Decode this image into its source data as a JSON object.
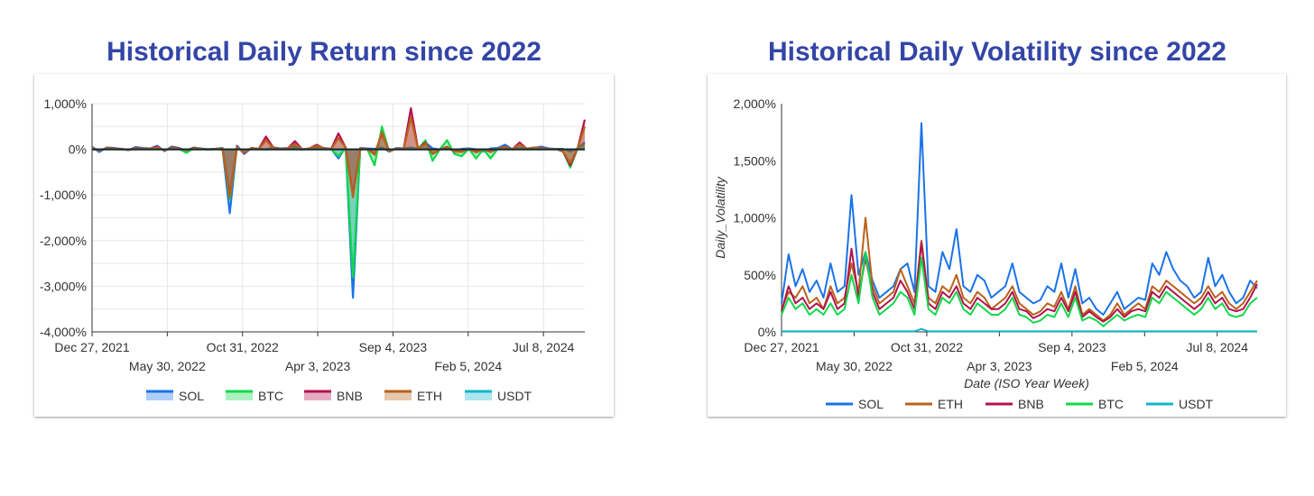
{
  "chart_data": [
    {
      "type": "area",
      "title": "Historical Daily Return since 2022",
      "xlabel": "",
      "ylabel": "",
      "ylim": [
        -4000,
        1000
      ],
      "y_ticks": [
        "1,000%",
        "0%",
        "-1,000%",
        "-2,000%",
        "-3,000%",
        "-4,000%"
      ],
      "x_tick_labels": [
        "Dec 27, 2021",
        "May 30, 2022",
        "Oct 31, 2022",
        "Apr 3, 2023",
        "Sep 4, 2023",
        "Feb 5, 2024",
        "Jul 8, 2024"
      ],
      "grid": true,
      "legend_position": "bottom",
      "legend": [
        {
          "name": "SOL",
          "color": "#1a73e8"
        },
        {
          "name": "BTC",
          "color": "#12d84a"
        },
        {
          "name": "BNB",
          "color": "#b3124f"
        },
        {
          "name": "ETH",
          "color": "#b8621b"
        },
        {
          "name": "USDT",
          "color": "#12b5cb"
        }
      ],
      "series": [
        {
          "name": "SOL",
          "color": "#1a73e8",
          "values": [
            60,
            -60,
            40,
            30,
            10,
            -20,
            50,
            30,
            20,
            80,
            -40,
            60,
            30,
            -30,
            40,
            20,
            0,
            10,
            30,
            -1400,
            80,
            -100,
            30,
            10,
            0,
            40,
            20,
            30,
            60,
            -10,
            20,
            40,
            30,
            10,
            -200,
            50,
            -3250,
            30,
            20,
            10,
            40,
            -50,
            30,
            20,
            40,
            10,
            150,
            20,
            0,
            30,
            -40,
            10,
            20,
            0,
            -50,
            20,
            30,
            100,
            0,
            40,
            20,
            30,
            60,
            20,
            10,
            10,
            -50,
            20,
            150
          ]
        },
        {
          "name": "BTC",
          "color": "#12d84a",
          "values": [
            30,
            -20,
            20,
            10,
            0,
            -10,
            20,
            10,
            10,
            30,
            -20,
            20,
            10,
            -80,
            20,
            10,
            0,
            10,
            20,
            -1100,
            40,
            -60,
            20,
            10,
            0,
            20,
            10,
            20,
            30,
            0,
            10,
            20,
            20,
            0,
            -150,
            30,
            -2800,
            20,
            0,
            -350,
            500,
            -50,
            20,
            10,
            20,
            10,
            200,
            -250,
            0,
            200,
            -100,
            -150,
            10,
            -200,
            0,
            -200,
            10,
            50,
            0,
            20,
            10,
            40,
            30,
            10,
            10,
            -50,
            -400,
            20,
            100
          ]
        },
        {
          "name": "BNB",
          "color": "#b3124f",
          "values": [
            40,
            -30,
            30,
            20,
            10,
            -10,
            30,
            20,
            10,
            60,
            -30,
            40,
            20,
            -20,
            30,
            10,
            0,
            10,
            20,
            -1000,
            60,
            -80,
            30,
            10,
            280,
            40,
            10,
            20,
            180,
            0,
            20,
            100,
            20,
            10,
            350,
            40,
            -1000,
            20,
            10,
            -100,
            350,
            -50,
            20,
            10,
            900,
            10,
            150,
            -100,
            0,
            50,
            -50,
            -50,
            10,
            -50,
            0,
            -50,
            10,
            60,
            0,
            150,
            10,
            40,
            30,
            10,
            10,
            -50,
            -350,
            20,
            650
          ]
        },
        {
          "name": "ETH",
          "color": "#b8621b",
          "values": [
            35,
            -25,
            25,
            15,
            5,
            -15,
            25,
            15,
            15,
            45,
            -25,
            30,
            15,
            -25,
            25,
            15,
            0,
            10,
            15,
            -1050,
            50,
            -70,
            25,
            10,
            200,
            30,
            10,
            20,
            120,
            0,
            15,
            80,
            20,
            5,
            250,
            35,
            -1050,
            20,
            5,
            -120,
            380,
            -45,
            20,
            10,
            700,
            10,
            130,
            -90,
            0,
            60,
            -45,
            -60,
            10,
            -70,
            0,
            -60,
            10,
            55,
            0,
            110,
            10,
            35,
            25,
            10,
            10,
            -45,
            -300,
            20,
            500
          ]
        },
        {
          "name": "USDT",
          "color": "#12b5cb",
          "values": [
            0,
            0,
            0,
            0,
            0,
            0,
            0,
            0,
            0,
            0,
            0,
            0,
            0,
            0,
            0,
            0,
            0,
            0,
            0,
            0,
            0,
            0,
            0,
            0,
            0,
            0,
            0,
            0,
            0,
            0,
            0,
            0,
            0,
            0,
            0,
            0,
            0,
            0,
            0,
            0,
            0,
            0,
            0,
            0,
            0,
            0,
            0,
            0,
            0,
            0,
            0,
            0,
            0,
            0,
            0,
            0,
            0,
            0,
            0,
            0,
            0,
            0,
            0,
            0,
            0,
            0,
            0,
            0,
            0
          ]
        }
      ]
    },
    {
      "type": "line",
      "title": "Historical Daily Volatility since 2022",
      "xlabel": "Date (ISO Year Week)",
      "ylabel": "Daily_Volatility",
      "ylim": [
        0,
        2000
      ],
      "y_ticks": [
        "2,000%",
        "1,500%",
        "1,000%",
        "500%",
        "0%"
      ],
      "x_tick_labels": [
        "Dec 27, 2021",
        "May 30, 2022",
        "Oct 31, 2022",
        "Apr 3, 2023",
        "Sep 4, 2023",
        "Feb 5, 2024",
        "Jul 8, 2024"
      ],
      "grid": false,
      "legend_position": "bottom",
      "legend": [
        {
          "name": "SOL",
          "color": "#1a73e8"
        },
        {
          "name": "ETH",
          "color": "#b8621b"
        },
        {
          "name": "BNB",
          "color": "#b3124f"
        },
        {
          "name": "BTC",
          "color": "#12d84a"
        },
        {
          "name": "USDT",
          "color": "#12b5cb"
        }
      ],
      "series": [
        {
          "name": "SOL",
          "color": "#1a73e8",
          "values": [
            250,
            680,
            400,
            550,
            350,
            450,
            300,
            600,
            350,
            400,
            1200,
            500,
            700,
            450,
            300,
            350,
            400,
            550,
            600,
            350,
            1830,
            400,
            350,
            700,
            550,
            900,
            400,
            350,
            500,
            450,
            300,
            350,
            400,
            600,
            350,
            300,
            250,
            280,
            400,
            350,
            600,
            300,
            550,
            250,
            300,
            200,
            150,
            250,
            350,
            200,
            250,
            300,
            280,
            600,
            500,
            700,
            550,
            450,
            400,
            300,
            350,
            650,
            400,
            500,
            350,
            250,
            300,
            450,
            380
          ]
        },
        {
          "name": "ETH",
          "color": "#b8621b",
          "values": [
            200,
            350,
            300,
            400,
            250,
            300,
            200,
            400,
            250,
            300,
            600,
            350,
            1000,
            400,
            250,
            300,
            350,
            550,
            400,
            250,
            800,
            300,
            250,
            400,
            350,
            500,
            300,
            250,
            350,
            300,
            200,
            250,
            300,
            400,
            250,
            200,
            150,
            180,
            250,
            220,
            350,
            200,
            400,
            150,
            200,
            150,
            100,
            150,
            250,
            150,
            200,
            250,
            200,
            400,
            350,
            450,
            400,
            350,
            300,
            250,
            300,
            400,
            300,
            350,
            250,
            200,
            250,
            350,
            450
          ]
        },
        {
          "name": "BNB",
          "color": "#b3124f",
          "values": [
            180,
            400,
            250,
            300,
            200,
            250,
            200,
            350,
            200,
            250,
            730,
            300,
            650,
            350,
            200,
            250,
            300,
            450,
            350,
            200,
            780,
            250,
            200,
            350,
            300,
            400,
            250,
            200,
            300,
            250,
            200,
            200,
            250,
            350,
            200,
            180,
            120,
            150,
            200,
            180,
            300,
            180,
            350,
            130,
            180,
            130,
            90,
            130,
            200,
            130,
            180,
            200,
            180,
            350,
            300,
            400,
            350,
            300,
            250,
            200,
            250,
            350,
            250,
            300,
            200,
            180,
            200,
            300,
            420
          ]
        },
        {
          "name": "BTC",
          "color": "#12d84a",
          "values": [
            150,
            300,
            200,
            250,
            150,
            200,
            150,
            250,
            150,
            200,
            500,
            250,
            700,
            300,
            150,
            200,
            250,
            350,
            300,
            150,
            650,
            200,
            150,
            300,
            250,
            350,
            200,
            150,
            250,
            200,
            150,
            150,
            200,
            300,
            150,
            130,
            80,
            100,
            150,
            130,
            250,
            130,
            300,
            100,
            130,
            100,
            50,
            100,
            150,
            100,
            130,
            150,
            130,
            300,
            250,
            350,
            300,
            250,
            200,
            150,
            200,
            300,
            200,
            250,
            150,
            130,
            150,
            250,
            300
          ]
        },
        {
          "name": "USDT",
          "color": "#12b5cb",
          "values": [
            5,
            5,
            5,
            5,
            5,
            5,
            5,
            5,
            5,
            5,
            5,
            5,
            5,
            5,
            5,
            5,
            5,
            5,
            5,
            5,
            25,
            5,
            5,
            5,
            5,
            5,
            5,
            5,
            5,
            5,
            5,
            5,
            5,
            5,
            5,
            5,
            5,
            5,
            5,
            5,
            5,
            5,
            5,
            5,
            5,
            5,
            5,
            5,
            5,
            5,
            5,
            5,
            5,
            5,
            5,
            5,
            5,
            5,
            5,
            5,
            5,
            5,
            5,
            5,
            5,
            5,
            5,
            5,
            5
          ]
        }
      ]
    }
  ]
}
